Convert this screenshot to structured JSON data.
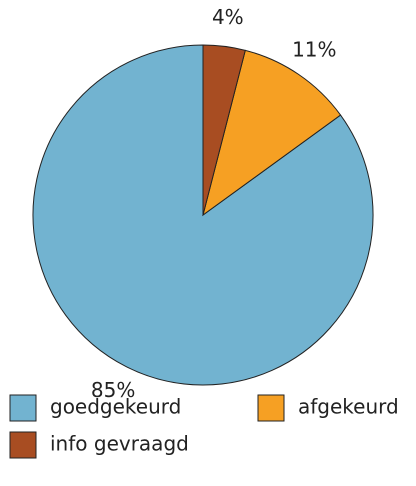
{
  "chart_data": {
    "type": "pie",
    "categories": [
      "goedgekeurd",
      "afgekeurd",
      "info gevraagd"
    ],
    "values": [
      85,
      11,
      4
    ],
    "value_labels": [
      "85%",
      "11%",
      "4%"
    ],
    "colors": [
      "#72b3d0",
      "#f6a023",
      "#a84d22"
    ],
    "legend": "bottom"
  }
}
